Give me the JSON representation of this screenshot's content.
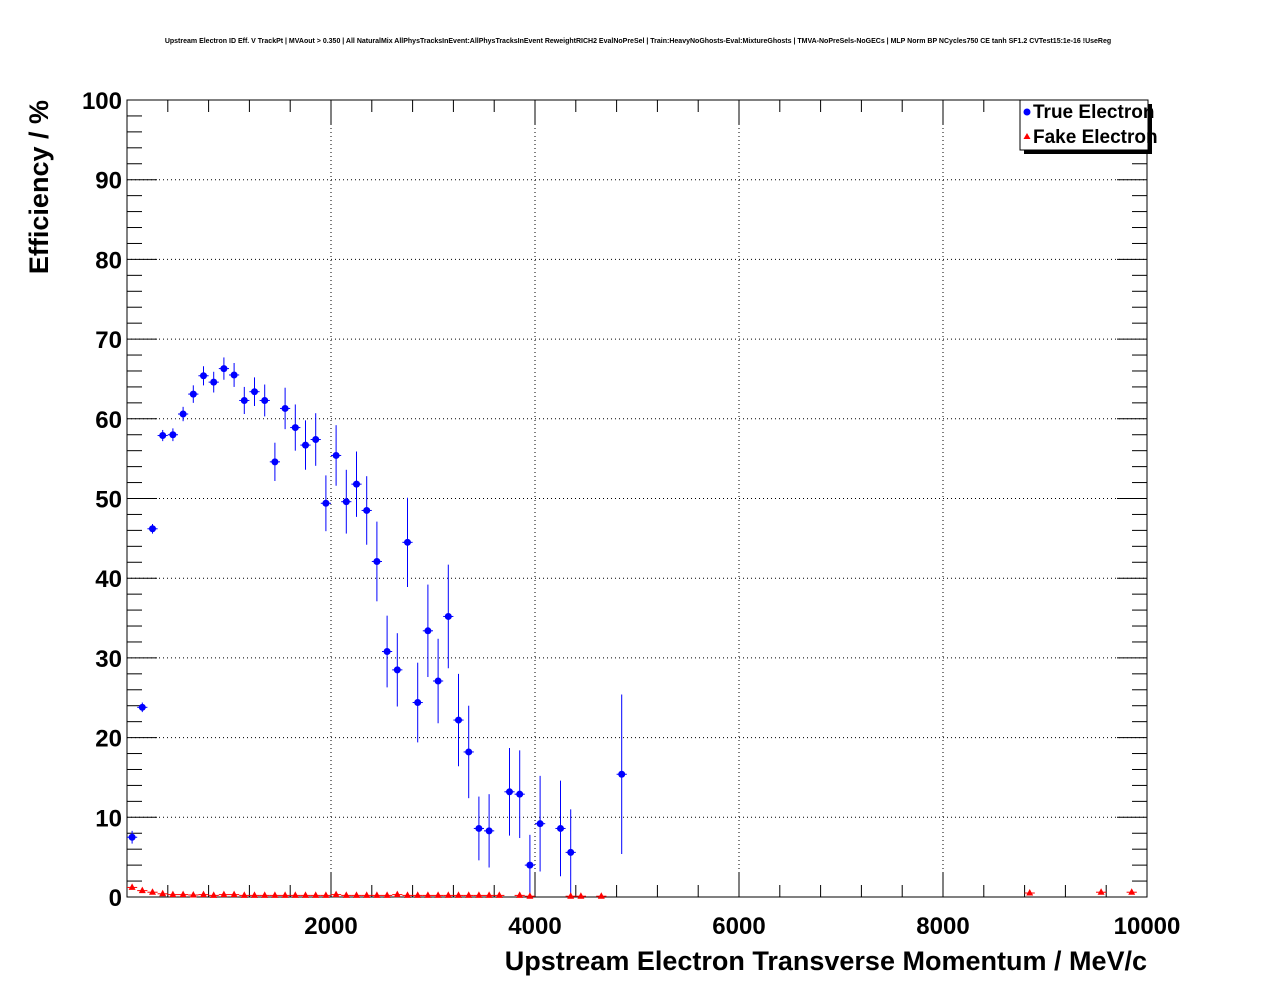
{
  "chart_data": {
    "type": "scatter",
    "title": "Upstream Electron ID Eff. V TrackPt | MVAout > 0.350 | All NaturalMix AllPhysTracksInEvent:AllPhysTracksInEvent ReweightRICH2 EvalNoPreSel | Train:HeavyNoGhosts-Eval:MixtureGhosts | TMVA-NoPreSels-NoGECs | MLP Norm BP NCycles750 CE tanh SF1.2 CVTest15:1e-16 !UseReg",
    "xlabel": "Upstream Electron Transverse Momentum / MeV/c",
    "ylabel": "Efficiency / %",
    "xlim": [
      0,
      10000
    ],
    "ylim": [
      0,
      100
    ],
    "xticks": [
      "2000",
      "4000",
      "6000",
      "8000",
      "10000"
    ],
    "yticks": [
      "0",
      "10",
      "20",
      "30",
      "40",
      "50",
      "60",
      "70",
      "80",
      "90",
      "100"
    ],
    "grid": true,
    "legend_position": "top-right",
    "series": [
      {
        "name": "True Electron",
        "color": "#0000ff",
        "marker": "circle",
        "points": [
          {
            "x": 50,
            "y": 7.5,
            "err": 0.8
          },
          {
            "x": 150,
            "y": 23.8,
            "err": 0.6
          },
          {
            "x": 250,
            "y": 46.2,
            "err": 0.6
          },
          {
            "x": 350,
            "y": 57.9,
            "err": 0.7
          },
          {
            "x": 450,
            "y": 58.0,
            "err": 0.8
          },
          {
            "x": 550,
            "y": 60.6,
            "err": 0.9
          },
          {
            "x": 650,
            "y": 63.1,
            "err": 1.1
          },
          {
            "x": 750,
            "y": 65.4,
            "err": 1.2
          },
          {
            "x": 850,
            "y": 64.6,
            "err": 1.3
          },
          {
            "x": 950,
            "y": 66.3,
            "err": 1.4
          },
          {
            "x": 1050,
            "y": 65.5,
            "err": 1.5
          },
          {
            "x": 1150,
            "y": 62.3,
            "err": 1.7
          },
          {
            "x": 1250,
            "y": 63.4,
            "err": 1.8
          },
          {
            "x": 1350,
            "y": 62.3,
            "err": 2.0
          },
          {
            "x": 1450,
            "y": 54.6,
            "err": 2.4
          },
          {
            "x": 1550,
            "y": 61.3,
            "err": 2.6
          },
          {
            "x": 1650,
            "y": 58.9,
            "err": 2.9
          },
          {
            "x": 1750,
            "y": 56.7,
            "err": 3.1
          },
          {
            "x": 1850,
            "y": 57.4,
            "err": 3.3
          },
          {
            "x": 1950,
            "y": 49.4,
            "err": 3.5
          },
          {
            "x": 2050,
            "y": 55.4,
            "err": 3.8
          },
          {
            "x": 2150,
            "y": 49.6,
            "err": 4.0
          },
          {
            "x": 2250,
            "y": 51.8,
            "err": 4.1
          },
          {
            "x": 2350,
            "y": 48.5,
            "err": 4.3
          },
          {
            "x": 2450,
            "y": 42.1,
            "err": 5.0
          },
          {
            "x": 2550,
            "y": 30.8,
            "err": 4.5
          },
          {
            "x": 2650,
            "y": 28.5,
            "err": 4.6
          },
          {
            "x": 2750,
            "y": 44.5,
            "err": 5.6
          },
          {
            "x": 2850,
            "y": 24.4,
            "err": 5.0
          },
          {
            "x": 2950,
            "y": 33.4,
            "err": 5.8
          },
          {
            "x": 3050,
            "y": 27.1,
            "err": 5.3
          },
          {
            "x": 3150,
            "y": 35.2,
            "err": 6.5
          },
          {
            "x": 3250,
            "y": 22.2,
            "err": 5.8
          },
          {
            "x": 3350,
            "y": 18.2,
            "err": 5.8
          },
          {
            "x": 3450,
            "y": 8.6,
            "err": 4.0
          },
          {
            "x": 3550,
            "y": 8.3,
            "err": 4.6
          },
          {
            "x": 3750,
            "y": 13.2,
            "err": 5.5
          },
          {
            "x": 3850,
            "y": 12.9,
            "err": 5.5
          },
          {
            "x": 3950,
            "y": 4.0,
            "err": 3.8
          },
          {
            "x": 4050,
            "y": 9.2,
            "err": 6.0
          },
          {
            "x": 4250,
            "y": 8.6,
            "err": 6.0
          },
          {
            "x": 4350,
            "y": 5.6,
            "err": 5.4
          },
          {
            "x": 4850,
            "y": 15.4,
            "err": 10.0
          }
        ]
      },
      {
        "name": "Fake Electron",
        "color": "#ff0000",
        "marker": "triangle",
        "points": [
          {
            "x": 50,
            "y": 1.2
          },
          {
            "x": 150,
            "y": 0.8
          },
          {
            "x": 250,
            "y": 0.6
          },
          {
            "x": 350,
            "y": 0.4
          },
          {
            "x": 450,
            "y": 0.3
          },
          {
            "x": 550,
            "y": 0.3
          },
          {
            "x": 650,
            "y": 0.25
          },
          {
            "x": 750,
            "y": 0.3
          },
          {
            "x": 850,
            "y": 0.2
          },
          {
            "x": 950,
            "y": 0.3
          },
          {
            "x": 1050,
            "y": 0.3
          },
          {
            "x": 1150,
            "y": 0.2
          },
          {
            "x": 1250,
            "y": 0.2
          },
          {
            "x": 1350,
            "y": 0.2
          },
          {
            "x": 1450,
            "y": 0.2
          },
          {
            "x": 1550,
            "y": 0.2
          },
          {
            "x": 1650,
            "y": 0.2
          },
          {
            "x": 1750,
            "y": 0.2
          },
          {
            "x": 1850,
            "y": 0.2
          },
          {
            "x": 1950,
            "y": 0.2
          },
          {
            "x": 2050,
            "y": 0.3
          },
          {
            "x": 2150,
            "y": 0.2
          },
          {
            "x": 2250,
            "y": 0.2
          },
          {
            "x": 2350,
            "y": 0.2
          },
          {
            "x": 2450,
            "y": 0.2
          },
          {
            "x": 2550,
            "y": 0.2
          },
          {
            "x": 2650,
            "y": 0.3
          },
          {
            "x": 2750,
            "y": 0.2
          },
          {
            "x": 2850,
            "y": 0.2
          },
          {
            "x": 2950,
            "y": 0.2
          },
          {
            "x": 3050,
            "y": 0.2
          },
          {
            "x": 3150,
            "y": 0.2
          },
          {
            "x": 3250,
            "y": 0.2
          },
          {
            "x": 3350,
            "y": 0.2
          },
          {
            "x": 3450,
            "y": 0.2
          },
          {
            "x": 3550,
            "y": 0.2
          },
          {
            "x": 3650,
            "y": 0.2
          },
          {
            "x": 3850,
            "y": 0.2
          },
          {
            "x": 3950,
            "y": 0.1
          },
          {
            "x": 4350,
            "y": 0.1
          },
          {
            "x": 4450,
            "y": 0.1
          },
          {
            "x": 4650,
            "y": 0.1
          },
          {
            "x": 8850,
            "y": 0.5
          },
          {
            "x": 9550,
            "y": 0.6
          },
          {
            "x": 9850,
            "y": 0.6
          }
        ]
      }
    ]
  }
}
